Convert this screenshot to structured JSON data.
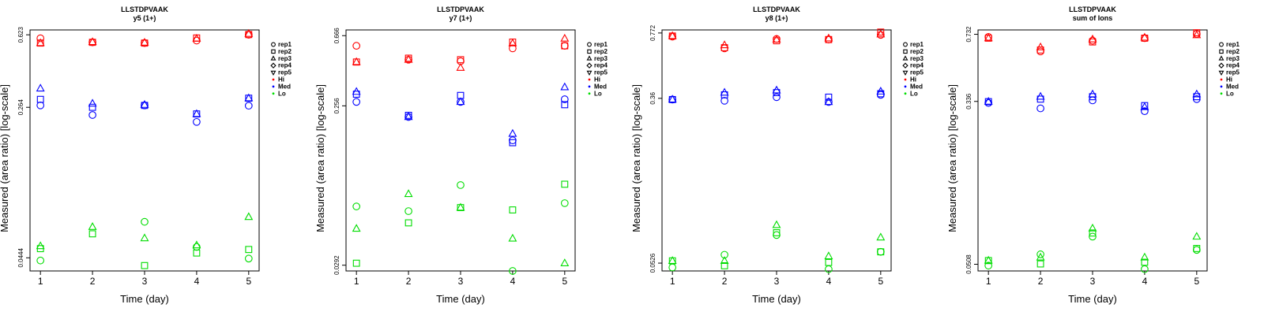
{
  "chart_data": [
    {
      "type": "scatter",
      "title": "LLSTDPVAAK",
      "subtitle": "y5 (1+)",
      "xlabel": "Time (day)",
      "ylabel": "Measured (area ratio) [log-scale]",
      "log_scale_y": true,
      "xlim": [
        0.8,
        5.2
      ],
      "ylim": [
        0.038,
        0.66
      ],
      "x_ticks": [
        "1",
        "2",
        "3",
        "4",
        "5"
      ],
      "y_ticks": [
        {
          "value": 0.0444,
          "label": "0.0444"
        },
        {
          "value": 0.264,
          "label": "0.264"
        },
        {
          "value": 0.623,
          "label": "0.623"
        }
      ],
      "legend": [
        {
          "label": "rep1",
          "shape": "circle"
        },
        {
          "label": "rep2",
          "shape": "square"
        },
        {
          "label": "rep3",
          "shape": "triangle"
        },
        {
          "label": "rep4",
          "shape": "diamond"
        },
        {
          "label": "rep5",
          "shape": "triangle-down"
        },
        {
          "label": "Hi",
          "shape": "dot",
          "color": "#ff0000"
        },
        {
          "label": "Med",
          "shape": "dot",
          "color": "#0000ff"
        },
        {
          "label": "Lo",
          "shape": "dot",
          "color": "#00dd00"
        }
      ],
      "series": [
        {
          "name": "Hi",
          "color": "#ff0000",
          "points": [
            {
              "x": 1,
              "rep1": 0.598,
              "rep2": 0.565,
              "rep3": 0.565
            },
            {
              "x": 2,
              "rep1": 0.57,
              "rep2": 0.57,
              "rep3": 0.572
            },
            {
              "x": 3,
              "rep1": 0.565,
              "rep2": 0.565,
              "rep3": 0.568
            },
            {
              "x": 4,
              "rep1": 0.582,
              "rep2": 0.6,
              "rep3": 0.595
            },
            {
              "x": 5,
              "rep1": 0.623,
              "rep2": 0.625,
              "rep3": 0.63
            }
          ]
        },
        {
          "name": "Med",
          "color": "#0000ff",
          "points": [
            {
              "x": 1,
              "rep1": 0.27,
              "rep2": 0.29,
              "rep3": 0.33
            },
            {
              "x": 2,
              "rep1": 0.241,
              "rep2": 0.264,
              "rep3": 0.276
            },
            {
              "x": 3,
              "rep1": 0.27,
              "rep2": 0.27,
              "rep3": 0.272
            },
            {
              "x": 4,
              "rep1": 0.222,
              "rep2": 0.244,
              "rep3": 0.244
            },
            {
              "x": 5,
              "rep1": 0.269,
              "rep2": 0.294,
              "rep3": 0.294
            }
          ]
        },
        {
          "name": "Lo",
          "color": "#00dd00",
          "points": [
            {
              "x": 1,
              "rep1": 0.043,
              "rep2": 0.0495,
              "rep3": 0.051
            },
            {
              "x": 2,
              "rep1": null,
              "rep2": 0.059,
              "rep3": 0.064
            },
            {
              "x": 3,
              "rep1": 0.068,
              "rep2": 0.0405,
              "rep3": 0.056
            },
            {
              "x": 4,
              "rep1": 0.0505,
              "rep2": 0.047,
              "rep3": 0.0515
            },
            {
              "x": 5,
              "rep1": 0.044,
              "rep2": 0.049,
              "rep3": 0.072
            }
          ]
        }
      ]
    },
    {
      "type": "scatter",
      "title": "LLSTDPVAAK",
      "subtitle": "y7 (1+)",
      "xlabel": "Time (day)",
      "ylabel": "Measured (area ratio) [log-scale]",
      "log_scale_y": true,
      "xlim": [
        0.8,
        5.2
      ],
      "ylim": [
        0.027,
        0.72
      ],
      "x_ticks": [
        "1",
        "2",
        "3",
        "4",
        "5"
      ],
      "y_ticks": [
        {
          "value": 0.0292,
          "label": "0.0292"
        },
        {
          "value": 0.256,
          "label": "0.256"
        },
        {
          "value": 0.666,
          "label": "0.666"
        }
      ],
      "legend": [
        {
          "label": "rep1",
          "shape": "circle"
        },
        {
          "label": "rep2",
          "shape": "square"
        },
        {
          "label": "rep3",
          "shape": "triangle"
        },
        {
          "label": "rep4",
          "shape": "diamond"
        },
        {
          "label": "rep5",
          "shape": "triangle-down"
        },
        {
          "label": "Hi",
          "shape": "dot",
          "color": "#ff0000"
        },
        {
          "label": "Med",
          "shape": "dot",
          "color": "#0000ff"
        },
        {
          "label": "Lo",
          "shape": "dot",
          "color": "#00dd00"
        }
      ],
      "series": [
        {
          "name": "Hi",
          "color": "#ff0000",
          "points": [
            {
              "x": 1,
              "rep1": 0.58,
              "rep2": 0.465,
              "rep3": 0.465
            },
            {
              "x": 2,
              "rep1": 0.48,
              "rep2": 0.49,
              "rep3": 0.48
            },
            {
              "x": 3,
              "rep1": 0.47,
              "rep2": 0.48,
              "rep3": 0.43
            },
            {
              "x": 4,
              "rep1": 0.56,
              "rep2": 0.61,
              "rep3": 0.6
            },
            {
              "x": 5,
              "rep1": 0.58,
              "rep2": 0.58,
              "rep3": 0.64
            }
          ]
        },
        {
          "name": "Med",
          "color": "#0000ff",
          "points": [
            {
              "x": 1,
              "rep1": 0.27,
              "rep2": 0.3,
              "rep3": 0.31
            },
            {
              "x": 2,
              "rep1": 0.22,
              "rep2": 0.225,
              "rep3": 0.22
            },
            {
              "x": 3,
              "rep1": 0.27,
              "rep2": 0.295,
              "rep3": 0.27
            },
            {
              "x": 4,
              "rep1": 0.16,
              "rep2": 0.155,
              "rep3": 0.175
            },
            {
              "x": 5,
              "rep1": 0.28,
              "rep2": 0.26,
              "rep3": 0.33
            }
          ]
        },
        {
          "name": "Lo",
          "color": "#00dd00",
          "points": [
            {
              "x": 1,
              "rep1": 0.065,
              "rep2": 0.03,
              "rep3": 0.048
            },
            {
              "x": 2,
              "rep1": 0.061,
              "rep2": 0.052,
              "rep3": 0.077
            },
            {
              "x": 3,
              "rep1": 0.087,
              "rep2": 0.064,
              "rep3": 0.064
            },
            {
              "x": 4,
              "rep1": 0.027,
              "rep2": 0.062,
              "rep3": 0.042
            },
            {
              "x": 5,
              "rep1": 0.068,
              "rep2": 0.088,
              "rep3": 0.03
            }
          ]
        }
      ]
    },
    {
      "type": "scatter",
      "title": "LLSTDPVAAK",
      "subtitle": "y8 (1+)",
      "xlabel": "Time (day)",
      "ylabel": "Measured (area ratio) [log-scale]",
      "log_scale_y": true,
      "xlim": [
        0.8,
        5.2
      ],
      "ylim": [
        0.048,
        0.8
      ],
      "x_ticks": [
        "1",
        "2",
        "3",
        "4",
        "5"
      ],
      "y_ticks": [
        {
          "value": 0.0526,
          "label": "0.0526"
        },
        {
          "value": 0.36,
          "label": "0.36"
        },
        {
          "value": 0.772,
          "label": "0.772"
        }
      ],
      "legend": [
        {
          "label": "rep1",
          "shape": "circle"
        },
        {
          "label": "rep2",
          "shape": "square"
        },
        {
          "label": "rep3",
          "shape": "triangle"
        },
        {
          "label": "rep4",
          "shape": "diamond"
        },
        {
          "label": "rep5",
          "shape": "triangle-down"
        },
        {
          "label": "Hi",
          "shape": "dot",
          "color": "#ff0000"
        },
        {
          "label": "Med",
          "shape": "dot",
          "color": "#0000ff"
        },
        {
          "label": "Lo",
          "shape": "dot",
          "color": "#00dd00"
        }
      ],
      "series": [
        {
          "name": "Hi",
          "color": "#ff0000",
          "points": [
            {
              "x": 1,
              "rep1": 0.74,
              "rep2": 0.745,
              "rep3": 0.745
            },
            {
              "x": 2,
              "rep1": 0.645,
              "rep2": 0.65,
              "rep3": 0.67
            },
            {
              "x": 3,
              "rep1": 0.72,
              "rep2": 0.705,
              "rep3": 0.715
            },
            {
              "x": 4,
              "rep1": 0.715,
              "rep2": 0.715,
              "rep3": 0.725
            },
            {
              "x": 5,
              "rep1": 0.755,
              "rep2": 0.78,
              "rep3": 0.76
            }
          ]
        },
        {
          "name": "Med",
          "color": "#0000ff",
          "points": [
            {
              "x": 1,
              "rep1": 0.355,
              "rep2": 0.355,
              "rep3": 0.355
            },
            {
              "x": 2,
              "rep1": 0.35,
              "rep2": 0.375,
              "rep3": 0.385
            },
            {
              "x": 3,
              "rep1": 0.365,
              "rep2": 0.385,
              "rep3": 0.395
            },
            {
              "x": 4,
              "rep1": 0.345,
              "rep2": 0.365,
              "rep3": 0.345
            },
            {
              "x": 5,
              "rep1": 0.375,
              "rep2": 0.38,
              "rep3": 0.39
            }
          ]
        },
        {
          "name": "Lo",
          "color": "#00dd00",
          "points": [
            {
              "x": 1,
              "rep1": 0.05,
              "rep2": 0.054,
              "rep3": 0.054
            },
            {
              "x": 2,
              "rep1": 0.058,
              "rep2": 0.051,
              "rep3": 0.054
            },
            {
              "x": 3,
              "rep1": 0.073,
              "rep2": 0.075,
              "rep3": 0.082
            },
            {
              "x": 4,
              "rep1": 0.049,
              "rep2": 0.053,
              "rep3": 0.057
            },
            {
              "x": 5,
              "rep1": 0.06,
              "rep2": 0.06,
              "rep3": 0.071
            }
          ]
        }
      ]
    },
    {
      "type": "scatter",
      "title": "LLSTDPVAAK",
      "subtitle": "sum of Ions",
      "xlabel": "Time (day)",
      "ylabel": "Measured (area ratio) [log-scale]",
      "log_scale_y": true,
      "xlim": [
        0.8,
        5.2
      ],
      "ylim": [
        0.047,
        0.77
      ],
      "x_ticks": [
        "1",
        "2",
        "3",
        "4",
        "5"
      ],
      "y_ticks": [
        {
          "value": 0.0508,
          "label": "0.0508"
        },
        {
          "value": 0.336,
          "label": "0.336"
        },
        {
          "value": 0.732,
          "label": "0.732"
        }
      ],
      "legend": [
        {
          "label": "rep1",
          "shape": "circle"
        },
        {
          "label": "rep2",
          "shape": "square"
        },
        {
          "label": "rep3",
          "shape": "triangle"
        },
        {
          "label": "rep4",
          "shape": "diamond"
        },
        {
          "label": "rep5",
          "shape": "triangle-down"
        },
        {
          "label": "Hi",
          "shape": "dot",
          "color": "#ff0000"
        },
        {
          "label": "Med",
          "shape": "dot",
          "color": "#0000ff"
        },
        {
          "label": "Lo",
          "shape": "dot",
          "color": "#00dd00"
        }
      ],
      "series": [
        {
          "name": "Hi",
          "color": "#ff0000",
          "points": [
            {
              "x": 1,
              "rep1": 0.71,
              "rep2": 0.7,
              "rep3": 0.7
            },
            {
              "x": 2,
              "rep1": 0.6,
              "rep2": 0.61,
              "rep3": 0.63
            },
            {
              "x": 3,
              "rep1": 0.68,
              "rep2": 0.67,
              "rep3": 0.69
            },
            {
              "x": 4,
              "rep1": 0.7,
              "rep2": 0.7,
              "rep3": 0.705
            },
            {
              "x": 5,
              "rep1": 0.735,
              "rep2": 0.745,
              "rep3": 0.725
            }
          ]
        },
        {
          "name": "Med",
          "color": "#0000ff",
          "points": [
            {
              "x": 1,
              "rep1": 0.33,
              "rep2": 0.335,
              "rep3": 0.335
            },
            {
              "x": 2,
              "rep1": 0.31,
              "rep2": 0.345,
              "rep3": 0.355
            },
            {
              "x": 3,
              "rep1": 0.34,
              "rep2": 0.355,
              "rep3": 0.365
            },
            {
              "x": 4,
              "rep1": 0.3,
              "rep2": 0.32,
              "rep3": 0.315
            },
            {
              "x": 5,
              "rep1": 0.345,
              "rep2": 0.355,
              "rep3": 0.365
            }
          ]
        },
        {
          "name": "Lo",
          "color": "#00dd00",
          "points": [
            {
              "x": 1,
              "rep1": 0.05,
              "rep2": 0.053,
              "rep3": 0.053
            },
            {
              "x": 2,
              "rep1": 0.057,
              "rep2": 0.051,
              "rep3": 0.055
            },
            {
              "x": 3,
              "rep1": 0.07,
              "rep2": 0.073,
              "rep3": 0.077
            },
            {
              "x": 4,
              "rep1": 0.048,
              "rep2": 0.052,
              "rep3": 0.055
            },
            {
              "x": 5,
              "rep1": 0.06,
              "rep2": 0.061,
              "rep3": 0.07
            }
          ]
        }
      ]
    }
  ]
}
